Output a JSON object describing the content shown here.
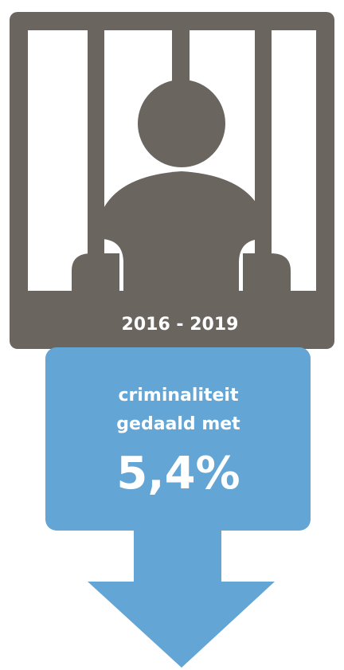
{
  "period": "2016 - 2019",
  "message": {
    "line1": "criminaliteit",
    "line2": "gedaald met",
    "figure": "5,4%"
  }
}
